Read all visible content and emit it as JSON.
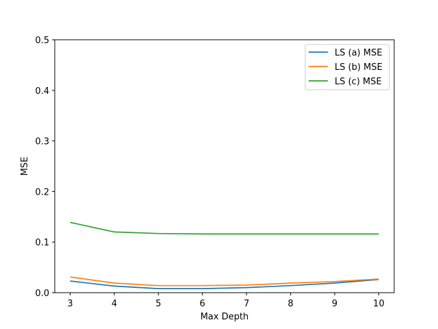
{
  "chart_data": {
    "type": "line",
    "title": "",
    "xlabel": "Max Depth",
    "ylabel": "MSE",
    "x": [
      3,
      4,
      5,
      6,
      7,
      8,
      9,
      10
    ],
    "xlim": [
      2.65,
      10.35
    ],
    "ylim": [
      0,
      0.5
    ],
    "xticks": [
      "3",
      "4",
      "5",
      "6",
      "7",
      "8",
      "9",
      "10"
    ],
    "yticks": [
      "0.0",
      "0.1",
      "0.2",
      "0.3",
      "0.4",
      "0.5"
    ],
    "grid": false,
    "legend_position": "top-right",
    "series": [
      {
        "name": "LS (a) MSE",
        "color": "#1f77b4",
        "values": [
          0.023,
          0.013,
          0.008,
          0.008,
          0.01,
          0.014,
          0.019,
          0.026
        ]
      },
      {
        "name": "LS (b) MSE",
        "color": "#ff7f0e",
        "values": [
          0.031,
          0.019,
          0.014,
          0.014,
          0.015,
          0.019,
          0.022,
          0.027
        ]
      },
      {
        "name": "LS (c) MSE",
        "color": "#2ca02c",
        "values": [
          0.139,
          0.12,
          0.117,
          0.116,
          0.116,
          0.116,
          0.116,
          0.116
        ]
      }
    ]
  }
}
